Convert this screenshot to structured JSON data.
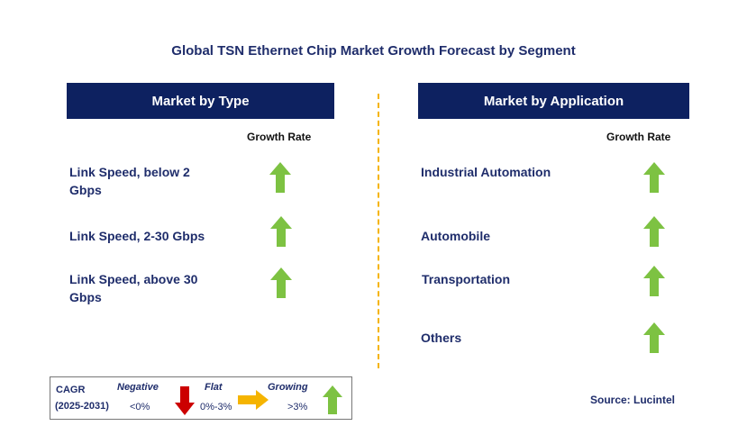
{
  "title": "Global TSN Ethernet Chip Market Growth Forecast by Segment",
  "left_panel": {
    "header": "Market by Type",
    "growth_label": "Growth Rate",
    "items": [
      {
        "label": "Link Speed, below 2 Gbps",
        "trend": "growing"
      },
      {
        "label": "Link Speed, 2-30 Gbps",
        "trend": "growing"
      },
      {
        "label": "Link Speed, above 30 Gbps",
        "trend": "growing"
      }
    ]
  },
  "right_panel": {
    "header": "Market by Application",
    "growth_label": "Growth Rate",
    "items": [
      {
        "label": "Industrial Automation",
        "trend": "growing"
      },
      {
        "label": "Automobile",
        "trend": "growing"
      },
      {
        "label": "Transportation",
        "trend": "growing"
      },
      {
        "label": "Others",
        "trend": "growing"
      }
    ]
  },
  "legend": {
    "cagr": "CAGR",
    "period": "(2025-2031)",
    "negative_label": "Negative",
    "negative_range": "<0%",
    "flat_label": "Flat",
    "flat_range": "0%-3%",
    "growing_label": "Growing",
    "growing_range": ">3%"
  },
  "source": "Source: Lucintel",
  "colors": {
    "header_bg": "#0d2160",
    "growing_arrow": "#7dc242",
    "negative_arrow": "#cc0000",
    "flat_arrow": "#f5b400",
    "divider": "#f5b400"
  }
}
